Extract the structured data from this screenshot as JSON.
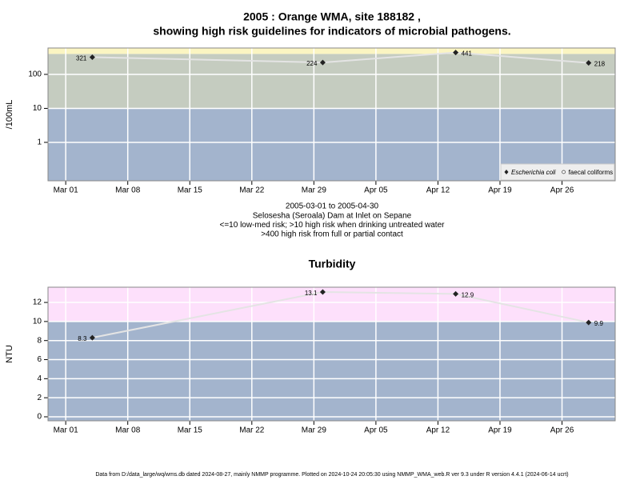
{
  "chart_data": [
    {
      "type": "line",
      "title": [
        "2005 : Orange WMA, site 188182 ,",
        "showing high risk guidelines for indicators of microbial pathogens."
      ],
      "y_label": "/100mL",
      "log_y": true,
      "x": [
        "2005-03-04",
        "2005-03-30",
        "2005-04-14",
        "2005-04-29"
      ],
      "xlim": [
        "2005-02-27",
        "2005-05-02"
      ],
      "xticks": [
        {
          "value": "2005-03-01",
          "label": "Mar 01"
        },
        {
          "value": "2005-03-08",
          "label": "Mar 08"
        },
        {
          "value": "2005-03-15",
          "label": "Mar 15"
        },
        {
          "value": "2005-03-22",
          "label": "Mar 22"
        },
        {
          "value": "2005-03-29",
          "label": "Mar 29"
        },
        {
          "value": "2005-04-05",
          "label": "Apr 05"
        },
        {
          "value": "2005-04-12",
          "label": "Apr 12"
        },
        {
          "value": "2005-04-19",
          "label": "Apr 19"
        },
        {
          "value": "2005-04-26",
          "label": "Apr 26"
        }
      ],
      "ylim": [
        0.074,
        597
      ],
      "yticks": [
        1,
        10,
        100
      ],
      "thresholds": [
        10,
        400
      ],
      "band_colors": [
        "#a3b4cd",
        "#c5ccc0",
        "#fbf5c2"
      ],
      "series": [
        {
          "name": "Escherichia coli",
          "color": "#222222",
          "values": [
            321,
            224,
            441,
            218
          ]
        },
        {
          "name": "faecal coliforms",
          "color": "#ffffff",
          "values": [
            null,
            null,
            null,
            null
          ]
        }
      ],
      "legend": "bottom-right",
      "grid": true,
      "notes": [
        "2005-03-01 to 2005-04-30",
        "Selosesha (Seroala) Dam at Inlet on Sepane",
        "<=10 low-med risk; >10 high risk when drinking untreated water",
        ">400 high risk from full or partial contact"
      ]
    },
    {
      "type": "line",
      "title": [
        "Turbidity"
      ],
      "y_label": "NTU",
      "log_y": false,
      "x": [
        "2005-03-04",
        "2005-03-30",
        "2005-04-14",
        "2005-04-29"
      ],
      "xlim": [
        "2005-02-27",
        "2005-05-02"
      ],
      "xticks": [
        {
          "value": "2005-03-01",
          "label": "Mar 01"
        },
        {
          "value": "2005-03-08",
          "label": "Mar 08"
        },
        {
          "value": "2005-03-15",
          "label": "Mar 15"
        },
        {
          "value": "2005-03-22",
          "label": "Mar 22"
        },
        {
          "value": "2005-03-29",
          "label": "Mar 29"
        },
        {
          "value": "2005-04-05",
          "label": "Apr 05"
        },
        {
          "value": "2005-04-12",
          "label": "Apr 12"
        },
        {
          "value": "2005-04-19",
          "label": "Apr 19"
        },
        {
          "value": "2005-04-26",
          "label": "Apr 26"
        }
      ],
      "ylim": [
        -0.42,
        13.6
      ],
      "yticks": [
        0,
        2,
        4,
        6,
        8,
        10,
        12
      ],
      "thresholds": [
        10
      ],
      "band_colors": [
        "#a3b4cd",
        "#fde0fb"
      ],
      "series": [
        {
          "name": "Turbidity",
          "color": "#222222",
          "values": [
            8.3,
            13.1,
            12.9,
            9.9
          ]
        }
      ],
      "grid": true
    }
  ],
  "footer": "Data from D:/data_large/wq/wms.db dated 2024-08-27, mainly NMMP programme. Plotted on 2024-10-24 20:05:30 using NMMP_WMA_web.R ver 9.3 under R version 4.4.1 (2024-06-14 ucrt)"
}
